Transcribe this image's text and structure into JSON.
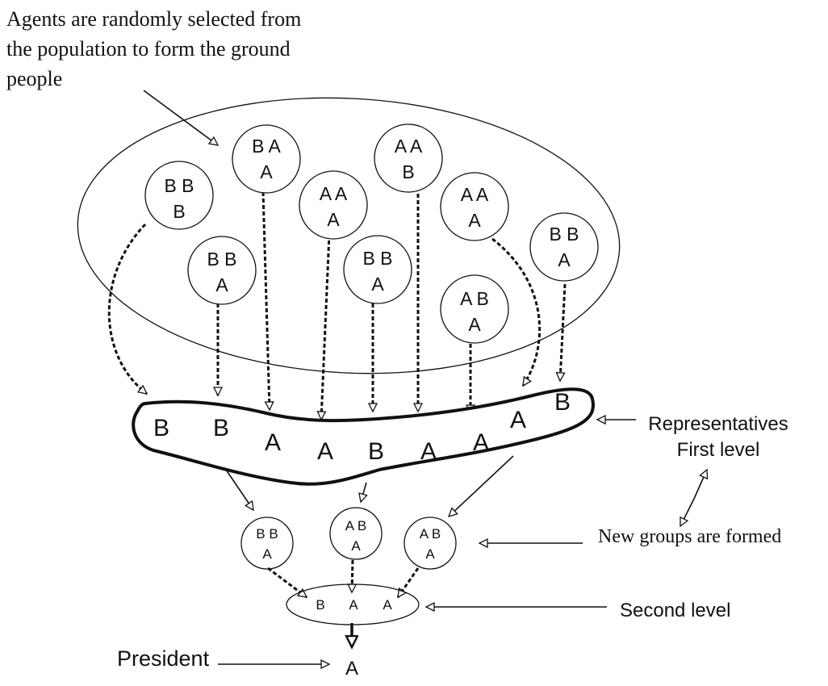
{
  "intro_text": [
    "Agents are randomly selected from",
    "the population to form the ground",
    "people"
  ],
  "ground_groups": [
    {
      "line1": "B B",
      "line2": "B"
    },
    {
      "line1": "B A",
      "line2": "A"
    },
    {
      "line1": "B B",
      "line2": "A"
    },
    {
      "line1": "A A",
      "line2": "A"
    },
    {
      "line1": "B B",
      "line2": "A"
    },
    {
      "line1": "A A",
      "line2": "B"
    },
    {
      "line1": "A A",
      "line2": "A"
    },
    {
      "line1": "A B",
      "line2": "A"
    },
    {
      "line1": "B B",
      "line2": "A"
    }
  ],
  "first_level_votes": [
    "B",
    "B",
    "A",
    "A",
    "B",
    "A",
    "A",
    "A",
    "B"
  ],
  "representatives_label": [
    "Representatives",
    "First level"
  ],
  "new_groups_label": "New groups are formed",
  "new_groups": [
    {
      "line1": "B B",
      "line2": "A"
    },
    {
      "line1": "A B",
      "line2": "A"
    },
    {
      "line1": "A B",
      "line2": "A"
    }
  ],
  "second_level_votes": [
    "B",
    "A",
    "A"
  ],
  "second_level_label": "Second level",
  "president_label": "President",
  "president_vote": "A"
}
